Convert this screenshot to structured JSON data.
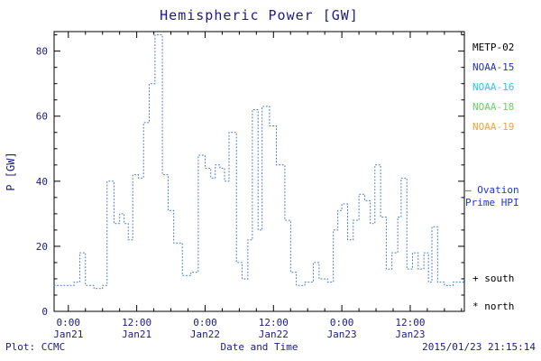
{
  "title": "Hemispheric Power [GW]",
  "colors": {
    "text_navy": "#1c1c80",
    "frame": "#000000",
    "line_blue": "#3e74c2"
  },
  "legend": {
    "items": [
      {
        "label": "METP-02",
        "color": "#000000"
      },
      {
        "label": "NOAA-15",
        "color": "#2233cc"
      },
      {
        "label": "NOAA-16",
        "color": "#29c8e8"
      },
      {
        "label": "NOAA-18",
        "color": "#63d663"
      },
      {
        "label": "NOAA-19",
        "color": "#f0a43c"
      }
    ]
  },
  "ovation": {
    "line1": "– Ovation",
    "line2": "Prime HPI",
    "color": "#2233cc"
  },
  "markers": {
    "south": "+ south",
    "north": "* north"
  },
  "footer": {
    "plot_source": "Plot: CCMC",
    "timestamp": "2015/01/23 21:15:14"
  },
  "chart_data": {
    "type": "line",
    "style": "dotted-step",
    "title": "Hemispheric Power [GW]",
    "xlabel": "Date and Time",
    "ylabel": "P [GW]",
    "ylim": [
      0,
      86
    ],
    "xlim_hours": [
      -2.5,
      69.5
    ],
    "x_unit": "hours from 2015-01-21 00:00",
    "grid": false,
    "legend_position": "right",
    "y_ticks": [
      0,
      20,
      40,
      60,
      80
    ],
    "x_ticks": [
      {
        "h": 0,
        "top": "0:00",
        "bottom": "Jan21"
      },
      {
        "h": 12,
        "top": "12:00",
        "bottom": "Jan21"
      },
      {
        "h": 24,
        "top": "0:00",
        "bottom": "Jan22"
      },
      {
        "h": 36,
        "top": "12:00",
        "bottom": "Jan22"
      },
      {
        "h": 48,
        "top": "0:00",
        "bottom": "Jan23"
      },
      {
        "h": 60,
        "top": "12:00",
        "bottom": "Jan23"
      }
    ],
    "series": [
      {
        "name": "Ovation Prime HPI",
        "color": "#3e74c2",
        "points": [
          [
            -2.5,
            8
          ],
          [
            1,
            9
          ],
          [
            2,
            18
          ],
          [
            3,
            8
          ],
          [
            4.5,
            7
          ],
          [
            6,
            8
          ],
          [
            6.8,
            40
          ],
          [
            8,
            27
          ],
          [
            9,
            30
          ],
          [
            9.8,
            27
          ],
          [
            10.5,
            22
          ],
          [
            11.3,
            42
          ],
          [
            12.3,
            41
          ],
          [
            13.2,
            58
          ],
          [
            14.2,
            70
          ],
          [
            15.2,
            85
          ],
          [
            16.5,
            42
          ],
          [
            17.5,
            31
          ],
          [
            18.5,
            21
          ],
          [
            20,
            11
          ],
          [
            21.5,
            12
          ],
          [
            22.8,
            48
          ],
          [
            24,
            44
          ],
          [
            25,
            41
          ],
          [
            25.8,
            45
          ],
          [
            26.6,
            44
          ],
          [
            27.4,
            40
          ],
          [
            28.2,
            55
          ],
          [
            29.5,
            15
          ],
          [
            30.5,
            10
          ],
          [
            31.5,
            22
          ],
          [
            32.3,
            62
          ],
          [
            33.3,
            25
          ],
          [
            34,
            63
          ],
          [
            35.3,
            57
          ],
          [
            36.5,
            45
          ],
          [
            38,
            28
          ],
          [
            39,
            12
          ],
          [
            40,
            8
          ],
          [
            41.5,
            9
          ],
          [
            43,
            15
          ],
          [
            44,
            10
          ],
          [
            45.5,
            9
          ],
          [
            46.5,
            25
          ],
          [
            47.3,
            31
          ],
          [
            48,
            33
          ],
          [
            49,
            22
          ],
          [
            50,
            28
          ],
          [
            51,
            36
          ],
          [
            52,
            34
          ],
          [
            53,
            27
          ],
          [
            53.8,
            45
          ],
          [
            54.8,
            29
          ],
          [
            55.8,
            13
          ],
          [
            56.8,
            18
          ],
          [
            57.8,
            29
          ],
          [
            58.4,
            41
          ],
          [
            59.4,
            13
          ],
          [
            60.4,
            18
          ],
          [
            61.4,
            13
          ],
          [
            62.4,
            18
          ],
          [
            63.2,
            9
          ],
          [
            63.8,
            26
          ],
          [
            64.8,
            9
          ],
          [
            66,
            8
          ],
          [
            67.5,
            9
          ],
          [
            69.5,
            9
          ]
        ]
      }
    ]
  }
}
